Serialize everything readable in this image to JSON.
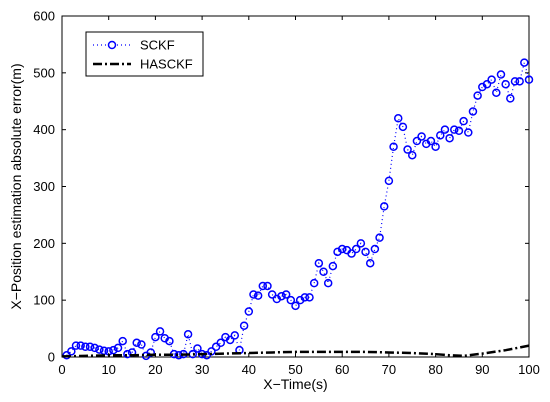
{
  "chart_data": {
    "type": "line",
    "xlabel": "X−Time(s)",
    "ylabel": "X−Position estimation absolute error(m)",
    "xlim": [
      0,
      100
    ],
    "ylim": [
      0,
      600
    ],
    "xticks": [
      0,
      10,
      20,
      30,
      40,
      50,
      60,
      70,
      80,
      90,
      100
    ],
    "yticks": [
      0,
      100,
      200,
      300,
      400,
      500,
      600
    ],
    "legend_position": "top-left",
    "grid": false,
    "series": [
      {
        "name": "SCKF",
        "color": "#0000ff",
        "line_style": "dotted",
        "marker": "circle",
        "x": [
          1,
          2,
          3,
          4,
          5,
          6,
          7,
          8,
          9,
          10,
          11,
          12,
          13,
          14,
          15,
          16,
          17,
          18,
          19,
          20,
          21,
          22,
          23,
          24,
          25,
          26,
          27,
          28,
          29,
          30,
          31,
          32,
          33,
          34,
          35,
          36,
          37,
          38,
          39,
          40,
          41,
          42,
          43,
          44,
          45,
          46,
          47,
          48,
          49,
          50,
          51,
          52,
          53,
          54,
          55,
          56,
          57,
          58,
          59,
          60,
          61,
          62,
          63,
          64,
          65,
          66,
          67,
          68,
          69,
          70,
          71,
          72,
          73,
          74,
          75,
          76,
          77,
          78,
          79,
          80,
          81,
          82,
          83,
          84,
          85,
          86,
          87,
          88,
          89,
          90,
          91,
          92,
          93,
          94,
          95,
          96,
          97,
          98,
          99,
          100
        ],
        "y": [
          3,
          10,
          20,
          20,
          18,
          18,
          16,
          13,
          11,
          10,
          12,
          16,
          28,
          5,
          8,
          25,
          22,
          2,
          8,
          35,
          45,
          33,
          28,
          5,
          3,
          5,
          40,
          5,
          15,
          5,
          3,
          10,
          18,
          25,
          35,
          30,
          38,
          12,
          55,
          80,
          110,
          108,
          125,
          125,
          110,
          102,
          107,
          110,
          100,
          90,
          100,
          105,
          105,
          130,
          165,
          150,
          130,
          160,
          185,
          190,
          188,
          182,
          190,
          200,
          185,
          165,
          190,
          210,
          265,
          310,
          370,
          420,
          405,
          365,
          355,
          380,
          388,
          375,
          380,
          370,
          390,
          400,
          385,
          400,
          398,
          415,
          395,
          432,
          460,
          475,
          480,
          488,
          465,
          497,
          480,
          455,
          485,
          485,
          518,
          488
        ]
      },
      {
        "name": "HASCKF",
        "color": "#000000",
        "line_style": "dash-dot",
        "marker": "none",
        "x": [
          0,
          5,
          10,
          15,
          20,
          25,
          30,
          35,
          40,
          45,
          50,
          55,
          60,
          65,
          70,
          75,
          80,
          83,
          86,
          90,
          95,
          100
        ],
        "y": [
          1,
          2,
          3,
          3,
          4,
          4,
          5,
          6,
          7,
          8,
          9,
          9,
          9,
          9,
          8,
          7,
          5,
          3,
          2,
          6,
          12,
          20
        ]
      }
    ]
  }
}
